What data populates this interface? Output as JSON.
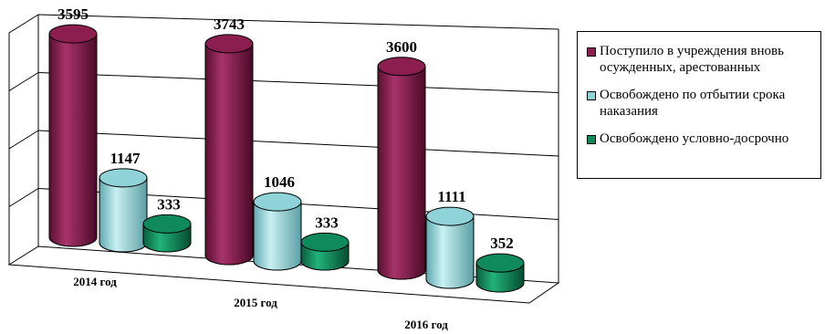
{
  "chart_data": {
    "type": "bar",
    "style": "3d-cylinder",
    "categories": [
      "2014 год",
      "2015 год",
      "2016 год"
    ],
    "series": [
      {
        "name": "Поступило в учреждения вновь осужденных, арестованных",
        "color": "#8b1e4e",
        "values": [
          3595,
          3743,
          3600
        ]
      },
      {
        "name": "Освобождено по отбытии срока наказания",
        "color": "#8fd3d8",
        "values": [
          1147,
          1046,
          1111
        ]
      },
      {
        "name": "Освобождено условно-досрочно",
        "color": "#0f8a5c",
        "values": [
          333,
          333,
          352
        ]
      }
    ],
    "value_labels": [
      "3595",
      "3743",
      "3600",
      "1147",
      "1046",
      "1111",
      "333",
      "333",
      "352"
    ],
    "ylim": [
      0,
      4000
    ],
    "grid": true,
    "legend_position": "right"
  }
}
